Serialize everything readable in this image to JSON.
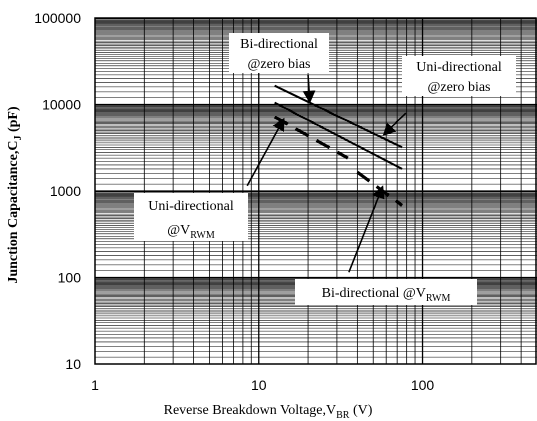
{
  "chart_data": {
    "type": "line",
    "x_scale": "log",
    "y_scale": "log",
    "xlim": [
      1,
      500
    ],
    "ylim": [
      10,
      100000
    ],
    "x_ticks": [
      1,
      10,
      100
    ],
    "x_tick_labels": [
      "1",
      "10",
      "100"
    ],
    "y_ticks": [
      10,
      100,
      1000,
      10000,
      100000
    ],
    "y_tick_labels": [
      "10",
      "100",
      "1000",
      "10000",
      "100000"
    ],
    "xlabel": {
      "main": "Reverse  Breakdown Voltage,V",
      "sub": "BR",
      "unit": " (V)"
    },
    "ylabel": {
      "main": "Junction Capacitance,C",
      "sub": "J",
      "unit": "  (pF)"
    },
    "grid": true,
    "series": [
      {
        "name": "Bi-directional @zero bias",
        "style": "solid",
        "x": [
          12.5,
          75
        ],
        "y": [
          16500,
          3200
        ]
      },
      {
        "name": "Uni-directional @zero bias",
        "style": "solid",
        "x": [
          12.5,
          75
        ],
        "y": [
          10500,
          1800
        ]
      },
      {
        "name": "Uni-directional @VRWM",
        "style": "dashed",
        "x": [
          12.5,
          35
        ],
        "y": [
          7200,
          2400
        ]
      },
      {
        "name": "Bi-directional @VRWM",
        "style": "dashed",
        "x": [
          40,
          75
        ],
        "y": [
          1650,
          680
        ]
      }
    ],
    "annotations": [
      {
        "lines": [
          {
            "text": "Bi-directional"
          },
          {
            "text": "@zero bias"
          }
        ],
        "box": true,
        "arrow": {
          "from": [
            20,
            22000
          ],
          "to": [
            20.5,
            10700
          ]
        }
      },
      {
        "lines": [
          {
            "text": "Uni-directional"
          },
          {
            "text": "@zero bias"
          }
        ],
        "box": true,
        "arrow": {
          "from": [
            79,
            8000
          ],
          "to": [
            58,
            4450
          ]
        }
      },
      {
        "lines": [
          {
            "text": "Uni-directional"
          },
          {
            "text": "@V",
            "sub": "RWM"
          }
        ],
        "box": true,
        "arrow": {
          "from": [
            8.5,
            1150
          ],
          "to": [
            14.2,
            6800
          ]
        }
      },
      {
        "lines": [
          {
            "text": "Bi-directional @V",
            "sub": "RWM"
          }
        ],
        "box": true,
        "arrow": {
          "from": [
            35.5,
            115
          ],
          "to": [
            57,
            1120
          ]
        }
      }
    ]
  }
}
